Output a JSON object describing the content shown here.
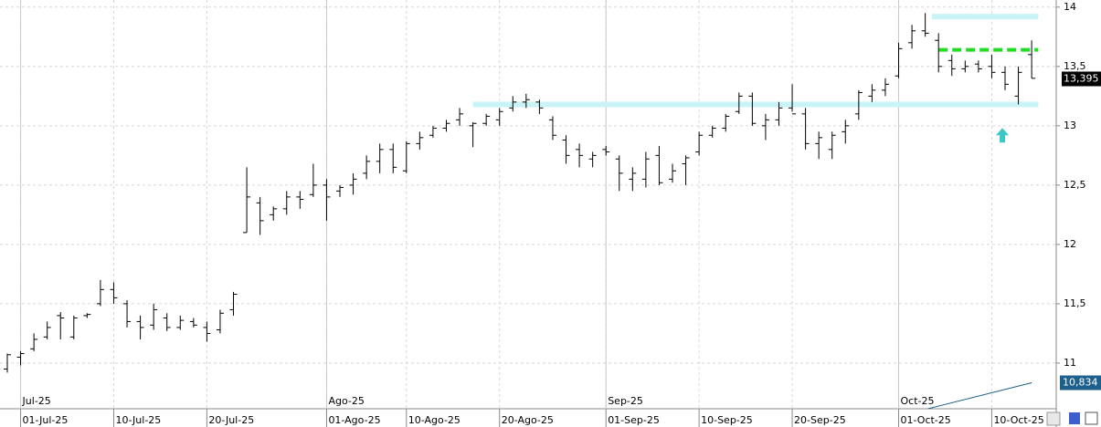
{
  "chart_data": {
    "type": "ohlc",
    "categories": [
      null,
      "01-Jul-25",
      null,
      null,
      null,
      null,
      null,
      null,
      "10-Jul-25",
      null,
      null,
      null,
      null,
      null,
      null,
      "20-Jul-25",
      null,
      null,
      null,
      null,
      null,
      null,
      null,
      null,
      "01-Ago-25",
      null,
      null,
      null,
      null,
      null,
      "10-Ago-25",
      null,
      null,
      null,
      null,
      null,
      null,
      "20-Ago-25",
      null,
      null,
      null,
      null,
      null,
      null,
      null,
      "01-Sep-25",
      null,
      null,
      null,
      null,
      null,
      null,
      "10-Sep-25",
      null,
      null,
      null,
      null,
      null,
      null,
      "20-Sep-25",
      null,
      null,
      null,
      null,
      null,
      null,
      null,
      "01-Oct-25",
      null,
      null,
      null,
      null,
      null,
      null,
      "10-Oct-25",
      null,
      null,
      null
    ],
    "month_labels": [
      null,
      "Jul-25",
      null,
      null,
      null,
      null,
      null,
      null,
      null,
      null,
      null,
      null,
      null,
      null,
      null,
      null,
      null,
      null,
      null,
      null,
      null,
      null,
      null,
      null,
      "Ago-25",
      null,
      null,
      null,
      null,
      null,
      null,
      null,
      null,
      null,
      null,
      null,
      null,
      null,
      null,
      null,
      null,
      null,
      null,
      null,
      null,
      "Sep-25",
      null,
      null,
      null,
      null,
      null,
      null,
      null,
      null,
      null,
      null,
      null,
      null,
      null,
      null,
      null,
      null,
      null,
      null,
      null,
      null,
      null,
      "Oct-25",
      null,
      null,
      null,
      null,
      null,
      null,
      null,
      null,
      null,
      null
    ],
    "open": [
      10.95,
      11.05,
      11.12,
      11.22,
      11.4,
      11.22,
      11.4,
      11.5,
      11.62,
      11.5,
      11.35,
      11.32,
      11.38,
      11.3,
      11.35,
      11.3,
      11.28,
      11.45,
      12.1,
      12.35,
      12.25,
      12.3,
      12.4,
      12.42,
      12.5,
      12.45,
      12.5,
      12.6,
      12.7,
      12.8,
      12.62,
      12.85,
      12.92,
      12.98,
      13.05,
      13.0,
      13.02,
      13.05,
      13.15,
      13.2,
      13.2,
      13.05,
      12.88,
      12.8,
      12.72,
      12.8,
      12.72,
      12.55,
      12.55,
      12.75,
      12.55,
      12.68,
      12.78,
      12.92,
      12.98,
      13.12,
      13.25,
      13.0,
      13.05,
      13.15,
      13.1,
      12.85,
      12.8,
      12.95,
      13.1,
      13.25,
      13.3,
      13.42,
      13.7,
      13.8,
      13.72,
      13.55,
      13.48,
      13.52,
      13.5,
      13.45,
      13.25,
      13.6
    ],
    "high": [
      11.08,
      11.1,
      11.25,
      11.35,
      11.43,
      11.4,
      11.42,
      11.7,
      11.68,
      11.53,
      11.4,
      11.5,
      11.42,
      11.4,
      11.38,
      11.35,
      11.45,
      11.6,
      12.65,
      12.4,
      12.32,
      12.45,
      12.45,
      12.68,
      12.55,
      12.5,
      12.6,
      12.75,
      12.85,
      12.85,
      12.87,
      12.95,
      13.0,
      13.05,
      13.15,
      13.03,
      13.1,
      13.15,
      13.25,
      13.27,
      13.22,
      13.08,
      12.92,
      12.85,
      12.78,
      12.83,
      12.75,
      12.65,
      12.78,
      12.83,
      12.68,
      12.75,
      12.95,
      13.0,
      13.1,
      13.28,
      13.28,
      13.1,
      13.2,
      13.35,
      13.15,
      12.95,
      12.95,
      13.05,
      13.3,
      13.35,
      13.4,
      13.7,
      13.85,
      13.95,
      13.78,
      13.6,
      13.55,
      13.55,
      13.6,
      13.5,
      13.5,
      13.72
    ],
    "low": [
      10.92,
      10.98,
      11.1,
      11.2,
      11.2,
      11.2,
      11.38,
      11.48,
      11.5,
      11.3,
      11.2,
      11.28,
      11.27,
      11.28,
      11.3,
      11.18,
      11.25,
      11.4,
      12.1,
      12.08,
      12.2,
      12.25,
      12.3,
      12.4,
      12.2,
      12.4,
      12.42,
      12.55,
      12.6,
      12.6,
      12.6,
      12.8,
      12.9,
      12.95,
      13.0,
      12.82,
      13.0,
      13.0,
      13.12,
      13.15,
      13.1,
      12.88,
      12.68,
      12.65,
      12.65,
      12.75,
      12.45,
      12.45,
      12.48,
      12.5,
      12.52,
      12.5,
      12.75,
      12.9,
      12.95,
      13.1,
      13.0,
      12.88,
      13.0,
      13.12,
      12.8,
      12.72,
      12.72,
      12.85,
      13.05,
      13.2,
      13.25,
      13.4,
      13.65,
      13.75,
      13.45,
      13.42,
      13.45,
      13.45,
      13.4,
      13.3,
      13.18,
      13.4
    ],
    "close": [
      11.07,
      11.08,
      11.2,
      11.3,
      11.38,
      11.38,
      11.41,
      11.62,
      11.55,
      11.35,
      11.3,
      11.45,
      11.3,
      11.36,
      11.32,
      11.25,
      11.42,
      11.58,
      12.4,
      12.2,
      12.3,
      12.4,
      12.38,
      12.5,
      12.4,
      12.48,
      12.55,
      12.7,
      12.8,
      12.65,
      12.85,
      12.9,
      12.98,
      13.02,
      13.1,
      13.02,
      13.08,
      13.12,
      13.2,
      13.22,
      13.15,
      12.92,
      12.75,
      12.75,
      12.75,
      12.78,
      12.6,
      12.6,
      12.72,
      12.52,
      12.62,
      12.73,
      12.92,
      12.98,
      13.08,
      13.25,
      13.02,
      13.05,
      13.15,
      13.1,
      12.85,
      12.9,
      12.92,
      13.0,
      13.28,
      13.3,
      13.35,
      13.65,
      13.8,
      13.78,
      13.5,
      13.48,
      13.5,
      13.48,
      13.45,
      13.35,
      13.45,
      13.4
    ],
    "color": "#000000",
    "ylim": [
      10.615,
      14.06
    ],
    "yticks": [
      11,
      {
        "value": 11.5,
        "label": "11,5"
      },
      12,
      {
        "value": 12.5,
        "label": "12,5"
      },
      13,
      {
        "value": 13.5,
        "label": "13,5"
      },
      14
    ],
    "grid": true,
    "levels": [
      {
        "value": 13.92,
        "color": "#c9f3f7"
      },
      {
        "value": 13.18,
        "color": "#c9f3f7"
      },
      {
        "value": 13.64,
        "color": "#22dd22"
      }
    ],
    "arrow_marker": {
      "value": 12.92,
      "color": "#3cc6c6"
    },
    "last_price": {
      "value": 13.395,
      "label": "13,395"
    },
    "trend_line": {
      "values": [
        10.615,
        10.834
      ],
      "color": "#1f5f8b",
      "tag": {
        "value": 10.834,
        "label": "10,834"
      }
    }
  }
}
